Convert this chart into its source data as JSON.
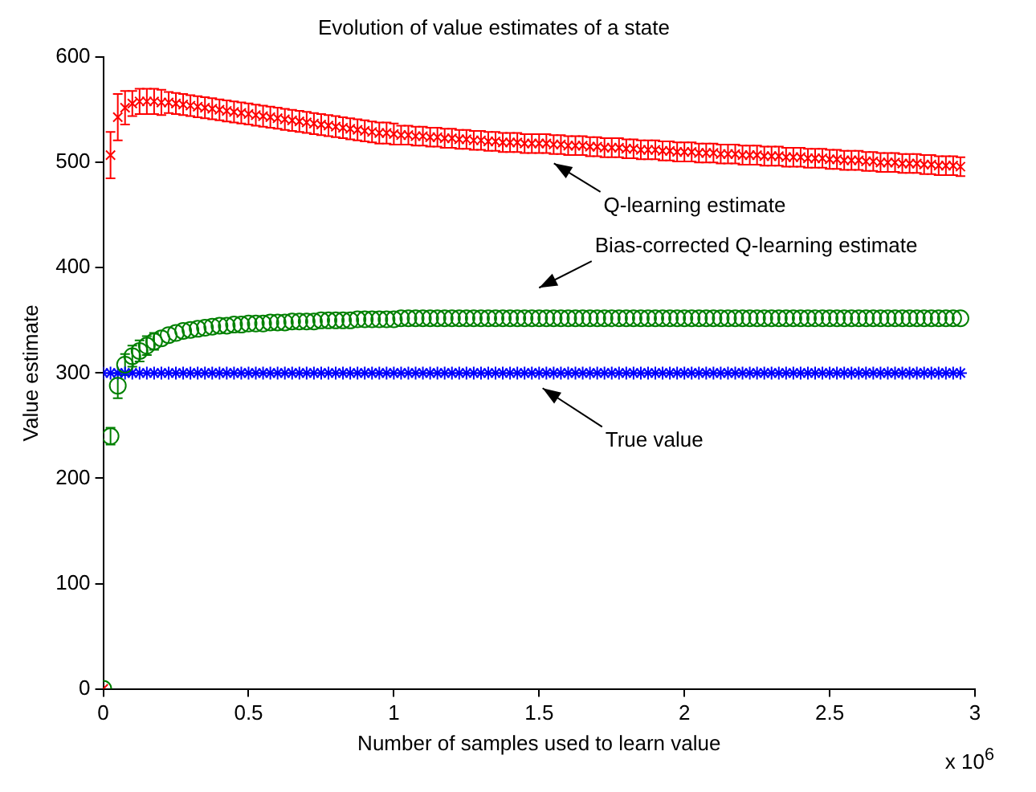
{
  "chart_data": {
    "type": "scatter",
    "title": "Evolution of value estimates of a state",
    "xlabel": "Number of samples used to learn value",
    "ylabel": "Value estimate",
    "xlim": [
      0,
      3
    ],
    "xticks": [
      0,
      0.5,
      1,
      1.5,
      2,
      2.5,
      3
    ],
    "ylim": [
      0,
      600
    ],
    "yticks": [
      0,
      100,
      200,
      300,
      400,
      500,
      600
    ],
    "grid": false,
    "legend": false,
    "x": [
      0,
      0.025,
      0.05,
      0.075,
      0.1,
      0.125,
      0.15,
      0.175,
      0.2,
      0.225,
      0.25,
      0.275,
      0.3,
      0.325,
      0.35,
      0.375,
      0.4,
      0.425,
      0.45,
      0.475,
      0.5,
      0.525,
      0.55,
      0.575,
      0.6,
      0.625,
      0.65,
      0.675,
      0.7,
      0.725,
      0.75,
      0.775,
      0.8,
      0.825,
      0.85,
      0.875,
      0.9,
      0.925,
      0.95,
      0.975,
      1,
      1.025,
      1.05,
      1.075,
      1.1,
      1.125,
      1.15,
      1.175,
      1.2,
      1.225,
      1.25,
      1.275,
      1.3,
      1.325,
      1.35,
      1.375,
      1.4,
      1.425,
      1.45,
      1.475,
      1.5,
      1.525,
      1.55,
      1.575,
      1.6,
      1.625,
      1.65,
      1.675,
      1.7,
      1.725,
      1.75,
      1.775,
      1.8,
      1.825,
      1.85,
      1.875,
      1.9,
      1.925,
      1.95,
      1.975,
      2,
      2.025,
      2.05,
      2.075,
      2.1,
      2.125,
      2.15,
      2.175,
      2.2,
      2.225,
      2.25,
      2.275,
      2.3,
      2.325,
      2.35,
      2.375,
      2.4,
      2.425,
      2.45,
      2.475,
      2.5,
      2.525,
      2.55,
      2.575,
      2.6,
      2.625,
      2.65,
      2.675,
      2.7,
      2.725,
      2.75,
      2.775,
      2.8,
      2.825,
      2.85,
      2.875,
      2.9,
      2.925,
      2.95
    ],
    "series": [
      {
        "color": "#ff0000",
        "marker": "cross",
        "values": [
          0,
          507,
          543,
          552,
          556,
          558,
          558,
          558,
          557,
          557,
          556,
          555,
          554,
          553,
          552,
          551,
          550,
          549,
          548,
          547,
          546,
          545,
          544,
          543,
          542,
          541,
          540,
          539,
          538,
          537,
          536,
          535,
          534,
          533,
          532,
          531,
          530,
          529,
          528,
          528,
          527,
          526,
          526,
          525,
          525,
          524,
          524,
          523,
          523,
          522,
          522,
          521,
          521,
          520,
          520,
          519,
          519,
          519,
          518,
          518,
          518,
          518,
          517,
          517,
          516,
          516,
          516,
          515,
          515,
          514,
          514,
          514,
          513,
          513,
          512,
          512,
          512,
          511,
          511,
          510,
          510,
          510,
          509,
          509,
          509,
          508,
          508,
          508,
          507,
          507,
          507,
          506,
          506,
          506,
          505,
          505,
          505,
          504,
          504,
          504,
          503,
          503,
          502,
          502,
          502,
          501,
          501,
          500,
          500,
          500,
          499,
          499,
          499,
          498,
          498,
          497,
          497,
          497,
          496
        ],
        "errors": [
          null,
          22,
          22,
          16,
          12,
          12,
          12,
          12,
          12,
          10,
          10,
          10,
          10,
          10,
          10,
          10,
          10,
          10,
          10,
          10,
          10,
          10,
          10,
          10,
          10,
          10,
          10,
          10,
          10,
          10,
          10,
          10,
          10,
          10,
          10,
          10,
          10,
          10,
          10,
          10,
          10,
          9,
          9,
          9,
          9,
          9,
          9,
          9,
          9,
          9,
          9,
          9,
          9,
          9,
          9,
          9,
          9,
          9,
          9,
          9,
          9,
          9,
          9,
          9,
          9,
          9,
          9,
          9,
          9,
          9,
          9,
          9,
          9,
          9,
          9,
          9,
          9,
          9,
          9,
          9,
          9,
          9,
          9,
          9,
          9,
          9,
          9,
          9,
          9,
          9,
          9,
          9,
          9,
          9,
          9,
          9,
          9,
          9,
          9,
          9,
          9,
          9,
          9,
          9,
          9,
          9,
          9,
          9,
          9,
          9,
          9,
          9,
          9,
          9,
          9,
          9,
          9,
          9,
          9
        ]
      },
      {
        "color": "#008000",
        "marker": "circle",
        "values": [
          0,
          240,
          288,
          308,
          316,
          321,
          326,
          330,
          333,
          336,
          338,
          340,
          341,
          342,
          343,
          344,
          345,
          345,
          346,
          346,
          347,
          347,
          347,
          348,
          348,
          348,
          349,
          349,
          349,
          349,
          350,
          350,
          350,
          350,
          350,
          351,
          351,
          351,
          351,
          351,
          351,
          352,
          352,
          352,
          352,
          352,
          352,
          352,
          352,
          352,
          352,
          352,
          352,
          352,
          352,
          352,
          352,
          352,
          352,
          352,
          352,
          352,
          352,
          352,
          352,
          352,
          352,
          352,
          352,
          352,
          352,
          352,
          352,
          352,
          352,
          352,
          352,
          352,
          352,
          352,
          352,
          352,
          352,
          352,
          352,
          352,
          352,
          352,
          352,
          352,
          352,
          352,
          352,
          352,
          352,
          352,
          352,
          352,
          352,
          352,
          352,
          352,
          352,
          352,
          352,
          352,
          352,
          352,
          352,
          352,
          352,
          352,
          352,
          352,
          352,
          352,
          352,
          352,
          352
        ],
        "errors": [
          null,
          8,
          12,
          10,
          10,
          10,
          9,
          8,
          null,
          null,
          null,
          null,
          null,
          null,
          null,
          null,
          null,
          null,
          null,
          null,
          null,
          null,
          null,
          null,
          null,
          null,
          null,
          null,
          null,
          null,
          null,
          null,
          null,
          null,
          null,
          null,
          null,
          null,
          null,
          null,
          null,
          null,
          null,
          null,
          null,
          null,
          null,
          null,
          null,
          null,
          null,
          null,
          null,
          null,
          null,
          null,
          null,
          null,
          null,
          null,
          null,
          null,
          null,
          null,
          null,
          null,
          null,
          null,
          null,
          null,
          null,
          null,
          null,
          null,
          null,
          null,
          null,
          null,
          null,
          null,
          null,
          null,
          null,
          null,
          null,
          null,
          null,
          null,
          null,
          null,
          null,
          null,
          null,
          null,
          null,
          null,
          null,
          null,
          null,
          null,
          null,
          null,
          null,
          null,
          null,
          null,
          null,
          null,
          null,
          null,
          null,
          null,
          null,
          null,
          null,
          null,
          null,
          null,
          null
        ]
      },
      {
        "color": "#0000ff",
        "values": [
          300,
          300,
          300,
          300,
          300,
          300,
          300,
          300,
          300,
          300,
          300,
          300,
          300,
          300,
          300,
          300,
          300,
          300,
          300,
          300,
          300,
          300,
          300,
          300,
          300,
          300,
          300,
          300,
          300,
          300,
          300,
          300,
          300,
          300,
          300,
          300,
          300,
          300,
          300,
          300,
          300,
          300,
          300,
          300,
          300,
          300,
          300,
          300,
          300,
          300,
          300,
          300,
          300,
          300,
          300,
          300,
          300,
          300,
          300,
          300,
          300,
          300,
          300,
          300,
          300,
          300,
          300,
          300,
          300,
          300,
          300,
          300,
          300,
          300,
          300,
          300,
          300,
          300,
          300,
          300,
          300,
          300,
          300,
          300,
          300,
          300,
          300,
          300,
          300,
          300,
          300,
          300,
          300,
          300,
          300,
          300,
          300,
          300,
          300,
          300,
          300,
          300,
          300,
          300,
          300,
          300,
          300,
          300,
          300,
          300,
          300,
          300,
          300,
          300,
          300,
          300,
          300,
          300,
          300
        ]
      }
    ],
    "annotations": [
      "Q-learning estimate",
      "Bias-corrected Q-learning estimate",
      "True value",
      "x 10$^{6}$"
    ]
  }
}
